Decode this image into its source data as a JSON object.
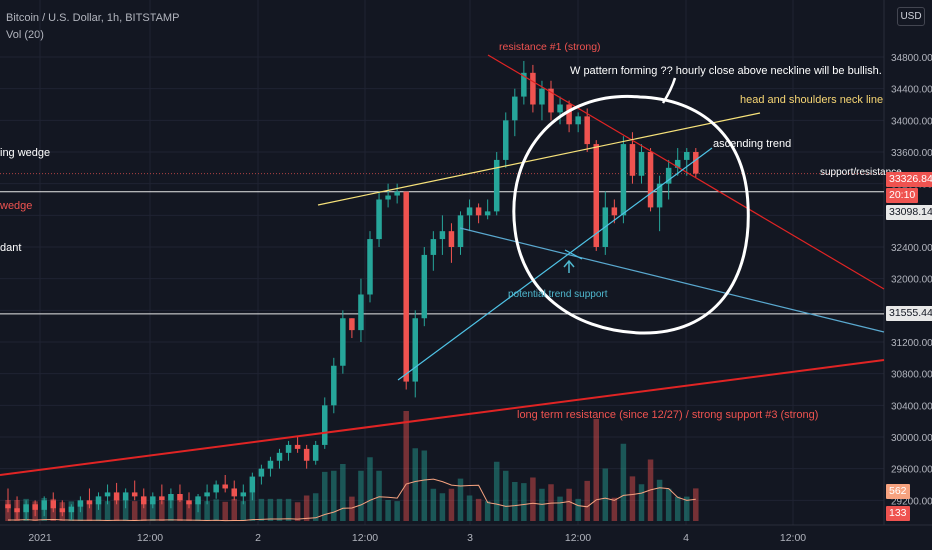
{
  "header": {
    "symbol": "Bitcoin / U.S. Dollar, 1h, BITSTAMP",
    "volume": "Vol (20)",
    "currency": "USD"
  },
  "colors": {
    "up": "#26a69a",
    "down": "#ef5350",
    "bg": "#131722",
    "grid": "#1f2332"
  },
  "chart_data": {
    "type": "candlestick",
    "x_tick_labels": [
      "2021",
      "12:00",
      "2",
      "12:00",
      "3",
      "12:00",
      "4",
      "12:00"
    ],
    "y_tick_labels": [
      "34800.00",
      "34400.00",
      "34000.00",
      "33600.00",
      "33200.00",
      "32800.00",
      "32400.00",
      "32000.00",
      "31600.00",
      "31200.00",
      "30800.00",
      "30400.00",
      "30000.00",
      "29600.00",
      "29200.00"
    ],
    "ylim": [
      29000,
      35200
    ],
    "price_tags": [
      {
        "label": "33326.84",
        "value": 33326.84,
        "color": "#ef5350"
      },
      {
        "label": "20:10",
        "value": 33180,
        "color": "#ef5350"
      },
      {
        "label": "33098.14",
        "value": 33098.14,
        "color": "#e8e8e8"
      },
      {
        "label": "31555.44",
        "value": 31555.44,
        "color": "#e8e8e8"
      },
      {
        "label": "562",
        "value": null,
        "color": "#f7a380"
      },
      {
        "label": "133",
        "value": null,
        "color": "#ef5350"
      }
    ],
    "candles": [
      [
        29150,
        29350,
        29050,
        29100
      ],
      [
        29100,
        29250,
        28950,
        29050
      ],
      [
        29050,
        29200,
        28950,
        29150
      ],
      [
        29150,
        29200,
        29000,
        29080
      ],
      [
        29080,
        29250,
        29000,
        29200
      ],
      [
        29200,
        29300,
        29050,
        29100
      ],
      [
        29100,
        29200,
        29000,
        29050
      ],
      [
        29050,
        29150,
        28950,
        29120
      ],
      [
        29120,
        29250,
        29050,
        29200
      ],
      [
        29200,
        29350,
        29100,
        29150
      ],
      [
        29150,
        29300,
        29080,
        29250
      ],
      [
        29250,
        29400,
        29150,
        29300
      ],
      [
        29300,
        29420,
        29150,
        29200
      ],
      [
        29200,
        29350,
        29100,
        29300
      ],
      [
        29300,
        29450,
        29200,
        29250
      ],
      [
        29250,
        29350,
        29100,
        29150
      ],
      [
        29150,
        29300,
        29100,
        29250
      ],
      [
        29250,
        29400,
        29150,
        29200
      ],
      [
        29200,
        29350,
        29100,
        29280
      ],
      [
        29280,
        29400,
        29180,
        29200
      ],
      [
        29200,
        29300,
        29100,
        29150
      ],
      [
        29150,
        29280,
        29050,
        29250
      ],
      [
        29250,
        29400,
        29150,
        29300
      ],
      [
        29300,
        29450,
        29220,
        29400
      ],
      [
        29400,
        29520,
        29300,
        29350
      ],
      [
        29350,
        29450,
        29200,
        29250
      ],
      [
        29250,
        29400,
        29150,
        29300
      ],
      [
        29300,
        29550,
        29200,
        29500
      ],
      [
        29500,
        29650,
        29400,
        29600
      ],
      [
        29600,
        29750,
        29500,
        29700
      ],
      [
        29700,
        29850,
        29600,
        29800
      ],
      [
        29800,
        29950,
        29700,
        29900
      ],
      [
        29900,
        30000,
        29800,
        29850
      ],
      [
        29850,
        29900,
        29600,
        29700
      ],
      [
        29700,
        29950,
        29650,
        29900
      ],
      [
        29900,
        30500,
        29850,
        30400
      ],
      [
        30400,
        31000,
        30300,
        30900
      ],
      [
        30900,
        31600,
        30800,
        31500
      ],
      [
        31500,
        31500,
        31250,
        31350
      ],
      [
        31350,
        32000,
        31200,
        31800
      ],
      [
        31800,
        32600,
        31700,
        32500
      ],
      [
        32500,
        33100,
        32400,
        33000
      ],
      [
        33000,
        33200,
        32900,
        33050
      ],
      [
        33050,
        33200,
        32950,
        33100
      ],
      [
        33100,
        33100,
        30600,
        30700
      ],
      [
        30700,
        31600,
        30500,
        31500
      ],
      [
        31500,
        32400,
        31400,
        32300
      ],
      [
        32300,
        32600,
        32100,
        32500
      ],
      [
        32500,
        32800,
        32300,
        32600
      ],
      [
        32600,
        32700,
        32200,
        32400
      ],
      [
        32400,
        32850,
        32300,
        32800
      ],
      [
        32800,
        33000,
        32600,
        32900
      ],
      [
        32900,
        32950,
        32700,
        32800
      ],
      [
        32800,
        33000,
        32750,
        32850
      ],
      [
        32850,
        33600,
        32800,
        33500
      ],
      [
        33500,
        34100,
        33400,
        34000
      ],
      [
        34000,
        34400,
        33800,
        34300
      ],
      [
        34300,
        34750,
        34200,
        34600
      ],
      [
        34600,
        34700,
        34100,
        34200
      ],
      [
        34200,
        34500,
        34000,
        34400
      ],
      [
        34400,
        34500,
        34000,
        34100
      ],
      [
        34100,
        34300,
        33950,
        34200
      ],
      [
        34200,
        34250,
        33850,
        33950
      ],
      [
        33950,
        34100,
        33850,
        34050
      ],
      [
        34050,
        34150,
        33600,
        33700
      ],
      [
        33700,
        33750,
        32350,
        32400
      ],
      [
        32400,
        33100,
        32300,
        32900
      ],
      [
        32900,
        33000,
        32700,
        32800
      ],
      [
        32800,
        33800,
        32700,
        33700
      ],
      [
        33700,
        33850,
        33200,
        33300
      ],
      [
        33300,
        33700,
        33200,
        33600
      ],
      [
        33600,
        33650,
        32850,
        32900
      ],
      [
        32900,
        33300,
        32600,
        33200
      ],
      [
        33200,
        33500,
        33000,
        33400
      ],
      [
        33400,
        33650,
        33300,
        33500
      ],
      [
        33500,
        33650,
        33300,
        33600
      ],
      [
        33600,
        33650,
        33280,
        33326.84
      ]
    ],
    "annotations": [
      {
        "text": "resistance #1 (strong)",
        "color": "#ef5350"
      },
      {
        "text": "W pattern forming ?? hourly close above neckline will be bullish.",
        "color": "#ffffff"
      },
      {
        "text": "head and shoulders neck line",
        "color": "#f7d674"
      },
      {
        "text": "ascending trend",
        "color": "#ffffff"
      },
      {
        "text": "support/resistance",
        "color": "#ffffff"
      },
      {
        "text": "potential trend support",
        "color": "#4fb8cf"
      },
      {
        "text": "long term resistance (since 12/27) / strong support #3 (strong)",
        "color": "#ef5350"
      },
      {
        "text": "ing wedge",
        "color": "#ffffff"
      },
      {
        "text": "wedge",
        "color": "#ef5350"
      },
      {
        "text": "dant",
        "color": "#ffffff"
      }
    ]
  }
}
